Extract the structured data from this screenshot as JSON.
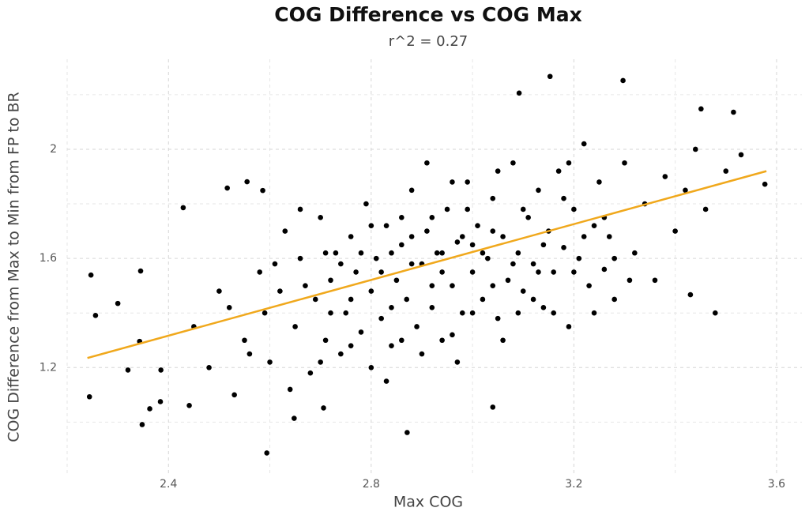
{
  "chart_data": {
    "type": "scatter",
    "title": "COG Difference vs COG Max",
    "subtitle": "r^2 = 0.27",
    "x_label": "Max COG",
    "y_label": "COG Difference from Max to Min from FP to BR",
    "color": "#000000",
    "grid": true,
    "xlim": [
      2.2,
      3.65
    ],
    "ylim": [
      0.81,
      2.33
    ],
    "xticks": [
      2.4,
      2.8,
      3.2,
      3.6
    ],
    "yticks": [
      1.2,
      1.6,
      2.0
    ],
    "x_minor_grid": [
      2.2,
      2.6,
      3.0,
      3.4
    ],
    "y_minor_grid": [
      1.0,
      1.4,
      1.8,
      2.2
    ],
    "x": [
      2.244,
      2.247,
      2.256,
      2.3,
      2.32,
      2.345,
      2.348,
      2.343,
      2.363,
      2.384,
      2.385,
      2.429,
      2.441,
      2.594,
      2.871,
      3.153,
      3.297,
      3.092,
      3.451,
      3.515,
      3.577,
      3.479,
      3.43,
      3.04,
      2.516,
      2.555,
      2.586,
      2.706,
      2.648,
      2.52,
      2.55,
      2.58,
      2.6,
      2.62,
      2.63,
      2.65,
      2.66,
      2.68,
      2.69,
      2.7,
      2.71,
      2.72,
      2.73,
      2.74,
      2.75,
      2.76,
      2.77,
      2.78,
      2.79,
      2.8,
      2.81,
      2.82,
      2.83,
      2.84,
      2.85,
      2.86,
      2.87,
      2.88,
      2.89,
      2.9,
      2.91,
      2.92,
      2.93,
      2.94,
      2.95,
      2.96,
      2.97,
      2.98,
      2.99,
      3.0,
      3.01,
      3.02,
      3.03,
      3.04,
      3.05,
      3.06,
      3.07,
      3.08,
      3.09,
      3.1,
      3.11,
      3.12,
      3.13,
      3.14,
      3.15,
      3.16,
      3.17,
      3.18,
      3.19,
      3.2,
      3.21,
      3.22,
      3.23,
      3.24,
      3.25,
      3.26,
      3.27,
      3.28,
      3.3,
      3.32,
      3.34,
      3.36,
      3.38,
      3.4,
      3.42,
      3.44,
      3.46,
      3.5,
      3.53,
      2.45,
      2.48,
      2.5,
      2.53,
      2.56,
      2.59,
      2.61,
      2.64,
      2.67,
      2.7,
      2.72,
      2.74,
      2.76,
      2.78,
      2.8,
      2.82,
      2.84,
      2.86,
      2.88,
      2.9,
      2.92,
      2.94,
      2.96,
      2.98,
      3.0,
      3.02,
      3.04,
      3.06,
      3.08,
      3.1,
      3.12,
      3.14,
      3.16,
      3.18,
      3.2,
      3.22,
      3.24,
      3.26,
      3.28,
      3.31,
      2.88,
      2.92,
      2.96,
      3.0,
      3.04,
      2.84,
      2.8,
      2.76,
      2.86,
      2.94,
      3.05,
      3.09,
      2.97,
      2.83,
      2.71,
      2.66,
      3.13,
      3.19,
      2.99,
      2.91
    ],
    "values": [
      1.093,
      1.539,
      1.391,
      1.435,
      1.191,
      1.554,
      0.991,
      1.296,
      1.049,
      1.075,
      1.191,
      1.786,
      1.061,
      0.887,
      0.962,
      2.267,
      2.252,
      2.206,
      2.148,
      2.136,
      1.872,
      1.4,
      1.467,
      1.055,
      1.858,
      1.881,
      1.849,
      1.052,
      1.014,
      1.42,
      1.3,
      1.55,
      1.22,
      1.48,
      1.7,
      1.35,
      1.6,
      1.18,
      1.45,
      1.75,
      1.3,
      1.52,
      1.62,
      1.25,
      1.4,
      1.68,
      1.55,
      1.33,
      1.8,
      1.48,
      1.6,
      1.38,
      1.72,
      1.28,
      1.52,
      1.65,
      1.45,
      1.85,
      1.35,
      1.58,
      1.7,
      1.42,
      1.62,
      1.3,
      1.78,
      1.5,
      1.66,
      1.4,
      1.88,
      1.55,
      1.72,
      1.45,
      1.6,
      1.82,
      1.38,
      1.68,
      1.52,
      1.95,
      1.62,
      1.48,
      1.75,
      1.58,
      1.85,
      1.42,
      1.7,
      1.55,
      1.92,
      1.64,
      1.35,
      1.78,
      1.6,
      2.02,
      1.5,
      1.72,
      1.88,
      1.56,
      1.68,
      1.45,
      1.95,
      1.62,
      1.8,
      1.52,
      1.9,
      1.7,
      1.85,
      2.0,
      1.78,
      1.92,
      1.98,
      1.35,
      1.2,
      1.48,
      1.1,
      1.25,
      1.4,
      1.58,
      1.12,
      1.5,
      1.22,
      1.4,
      1.58,
      1.28,
      1.62,
      1.2,
      1.55,
      1.42,
      1.3,
      1.58,
      1.25,
      1.75,
      1.55,
      1.32,
      1.68,
      1.4,
      1.62,
      1.5,
      1.3,
      1.58,
      1.78,
      1.45,
      1.65,
      1.4,
      1.82,
      1.55,
      1.68,
      1.4,
      1.75,
      1.6,
      1.52,
      1.68,
      1.5,
      1.88,
      1.65,
      1.7,
      1.62,
      1.72,
      1.45,
      1.75,
      1.62,
      1.92,
      1.4,
      1.22,
      1.15,
      1.62,
      1.78,
      1.55,
      1.95,
      1.78,
      1.95
    ],
    "trend_line": {
      "x": [
        2.24,
        3.58
      ],
      "y": [
        1.235,
        1.92
      ],
      "color": "#f0a81c"
    }
  }
}
